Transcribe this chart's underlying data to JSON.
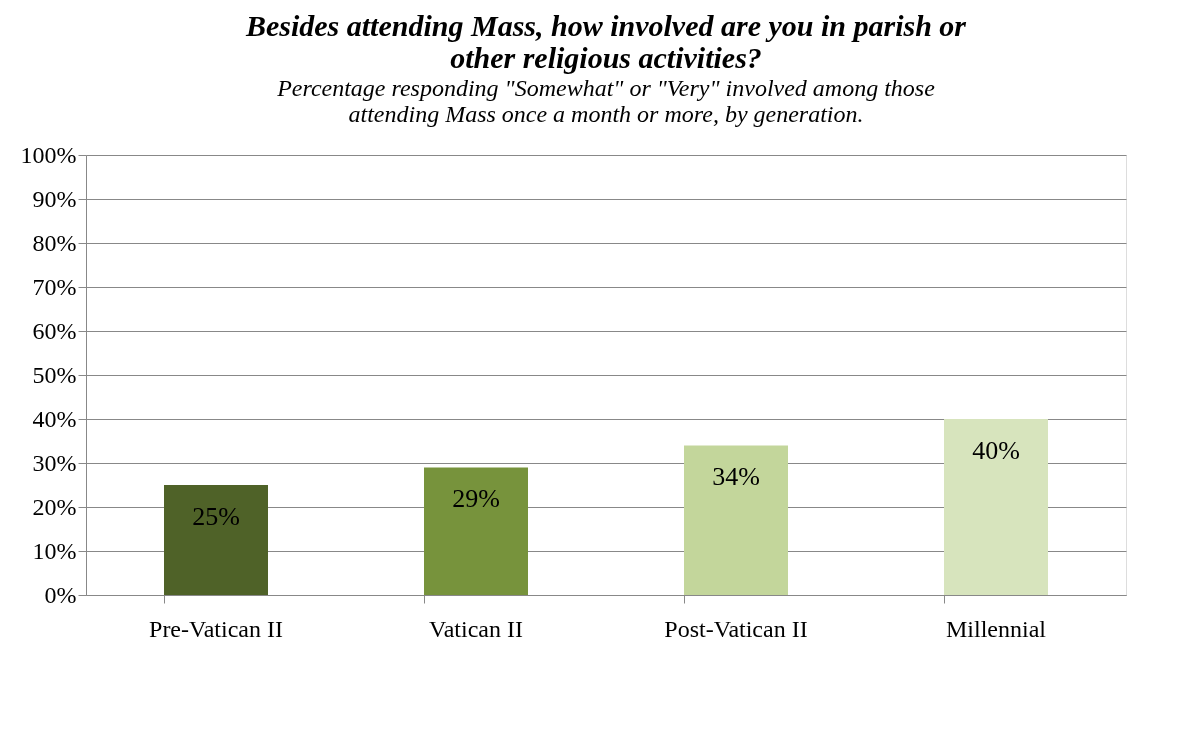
{
  "chart_data": {
    "type": "bar",
    "title": [
      "Besides attending Mass, how involved are you in parish or",
      "other religious activities?"
    ],
    "subtitle": [
      "Percentage responding \"Somewhat\" or \"Very\" involved among those",
      "attending Mass once a month or more, by generation."
    ],
    "categories": [
      "Pre-Vatican II",
      "Vatican II",
      "Post-Vatican II",
      "Millennial"
    ],
    "values": [
      25,
      29,
      34,
      40
    ],
    "colors": [
      "#4f6228",
      "#77933c",
      "#c3d69b",
      "#d7e4bd"
    ],
    "value_labels": [
      "25%",
      "29%",
      "34%",
      "40%"
    ],
    "ylim": [
      0,
      100
    ],
    "yticks": [
      {
        "value": 0,
        "label": "0%"
      },
      {
        "value": 10,
        "label": "10%"
      },
      {
        "value": 20,
        "label": "20%"
      },
      {
        "value": 30,
        "label": "30%"
      },
      {
        "value": 40,
        "label": "40%"
      },
      {
        "value": 50,
        "label": "50%"
      },
      {
        "value": 60,
        "label": "60%"
      },
      {
        "value": 70,
        "label": "70%"
      },
      {
        "value": 80,
        "label": "80%"
      },
      {
        "value": 90,
        "label": "90%"
      },
      {
        "value": 100,
        "label": "100%"
      }
    ],
    "grid": "y"
  }
}
